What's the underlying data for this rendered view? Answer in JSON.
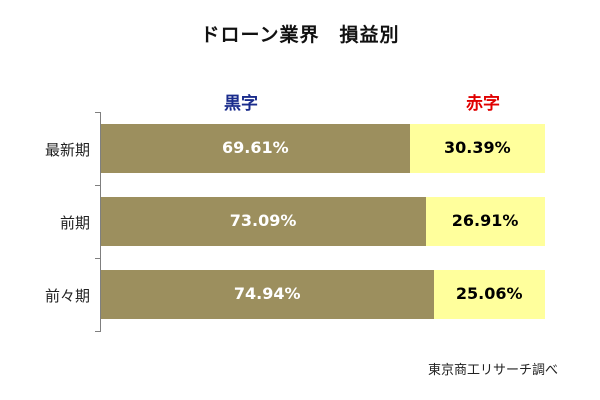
{
  "title": "ドローン業界　損益別",
  "source": "東京商工リサーチ調べ",
  "colors": {
    "profit_bar": "#9c8f5e",
    "loss_bar": "#ffff9c",
    "profit_legend": "#1a2c8c",
    "loss_legend": "#e00000",
    "profit_label": "#ffffff",
    "loss_label": "#000000"
  },
  "chart_data": {
    "type": "bar",
    "orientation": "horizontal",
    "stacked": "percent",
    "categories": [
      "最新期",
      "前期",
      "前々期"
    ],
    "series": [
      {
        "name": "黒字",
        "values": [
          69.61,
          73.09,
          74.94
        ],
        "labels": [
          "69.61%",
          "73.09%",
          "74.94%"
        ]
      },
      {
        "name": "赤字",
        "values": [
          30.39,
          26.91,
          25.06
        ],
        "labels": [
          "30.39%",
          "26.91%",
          "25.06%"
        ]
      }
    ],
    "xlim": [
      0,
      100
    ],
    "legend": "top"
  }
}
